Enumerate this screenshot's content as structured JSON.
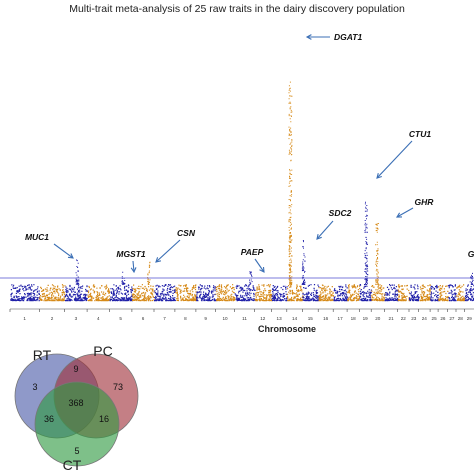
{
  "title": "Multi-trait meta-analysis of 25 raw traits in the dairy discovery population",
  "chart_data": [
    {
      "type": "scatter",
      "subtype": "manhattan",
      "xlabel": "Chromosome",
      "ylabel": "",
      "chromosomes": [
        "1",
        "2",
        "3",
        "4",
        "5",
        "6",
        "7",
        "8",
        "9",
        "10",
        "11",
        "12",
        "13",
        "14",
        "15",
        "16",
        "17",
        "18",
        "19",
        "20",
        "21",
        "22",
        "23",
        "24",
        "25",
        "26",
        "27",
        "28",
        "29"
      ],
      "colors": {
        "odd": "#1f1fa8",
        "even": "#d68a18",
        "threshold": "#7b7bdb",
        "arrow": "#3b6fb5"
      },
      "threshold_line": true,
      "grid": false,
      "legend": "none",
      "signal_peaks": [
        {
          "chromosome": "3",
          "height": 0.14
        },
        {
          "chromosome": "5",
          "height": 0.07
        },
        {
          "chromosome": "6",
          "height": 0.12
        },
        {
          "chromosome": "11",
          "height": 0.07
        },
        {
          "chromosome": "14",
          "height": 1.0
        },
        {
          "chromosome": "15",
          "height": 0.22
        },
        {
          "chromosome": "19",
          "height": 0.42
        },
        {
          "chromosome": "20",
          "height": 0.3
        },
        {
          "chromosome": "29",
          "height": 0.06
        }
      ],
      "annotations": [
        {
          "label": "DGAT1",
          "chromosome": "14"
        },
        {
          "label": "CTU1",
          "chromosome": "19"
        },
        {
          "label": "SDC2",
          "chromosome": "14"
        },
        {
          "label": "GHR",
          "chromosome": "20"
        },
        {
          "label": "MUC1",
          "chromosome": "3"
        },
        {
          "label": "MGST1",
          "chromosome": "5"
        },
        {
          "label": "CSN",
          "chromosome": "6"
        },
        {
          "label": "PAEP",
          "chromosome": "11"
        },
        {
          "label": "G",
          "chromosome": "29"
        }
      ]
    },
    {
      "type": "venn",
      "sets": [
        {
          "name": "RT",
          "color": "#4a5aa8"
        },
        {
          "name": "PC",
          "color": "#a0303a"
        },
        {
          "name": "CT",
          "color": "#2e9a40"
        }
      ],
      "regions": {
        "RT_only": 3,
        "PC_only": 73,
        "CT_only": 5,
        "RT_PC": 9,
        "RT_CT": 36,
        "PC_CT": 16,
        "RT_PC_CT": 368
      }
    }
  ]
}
